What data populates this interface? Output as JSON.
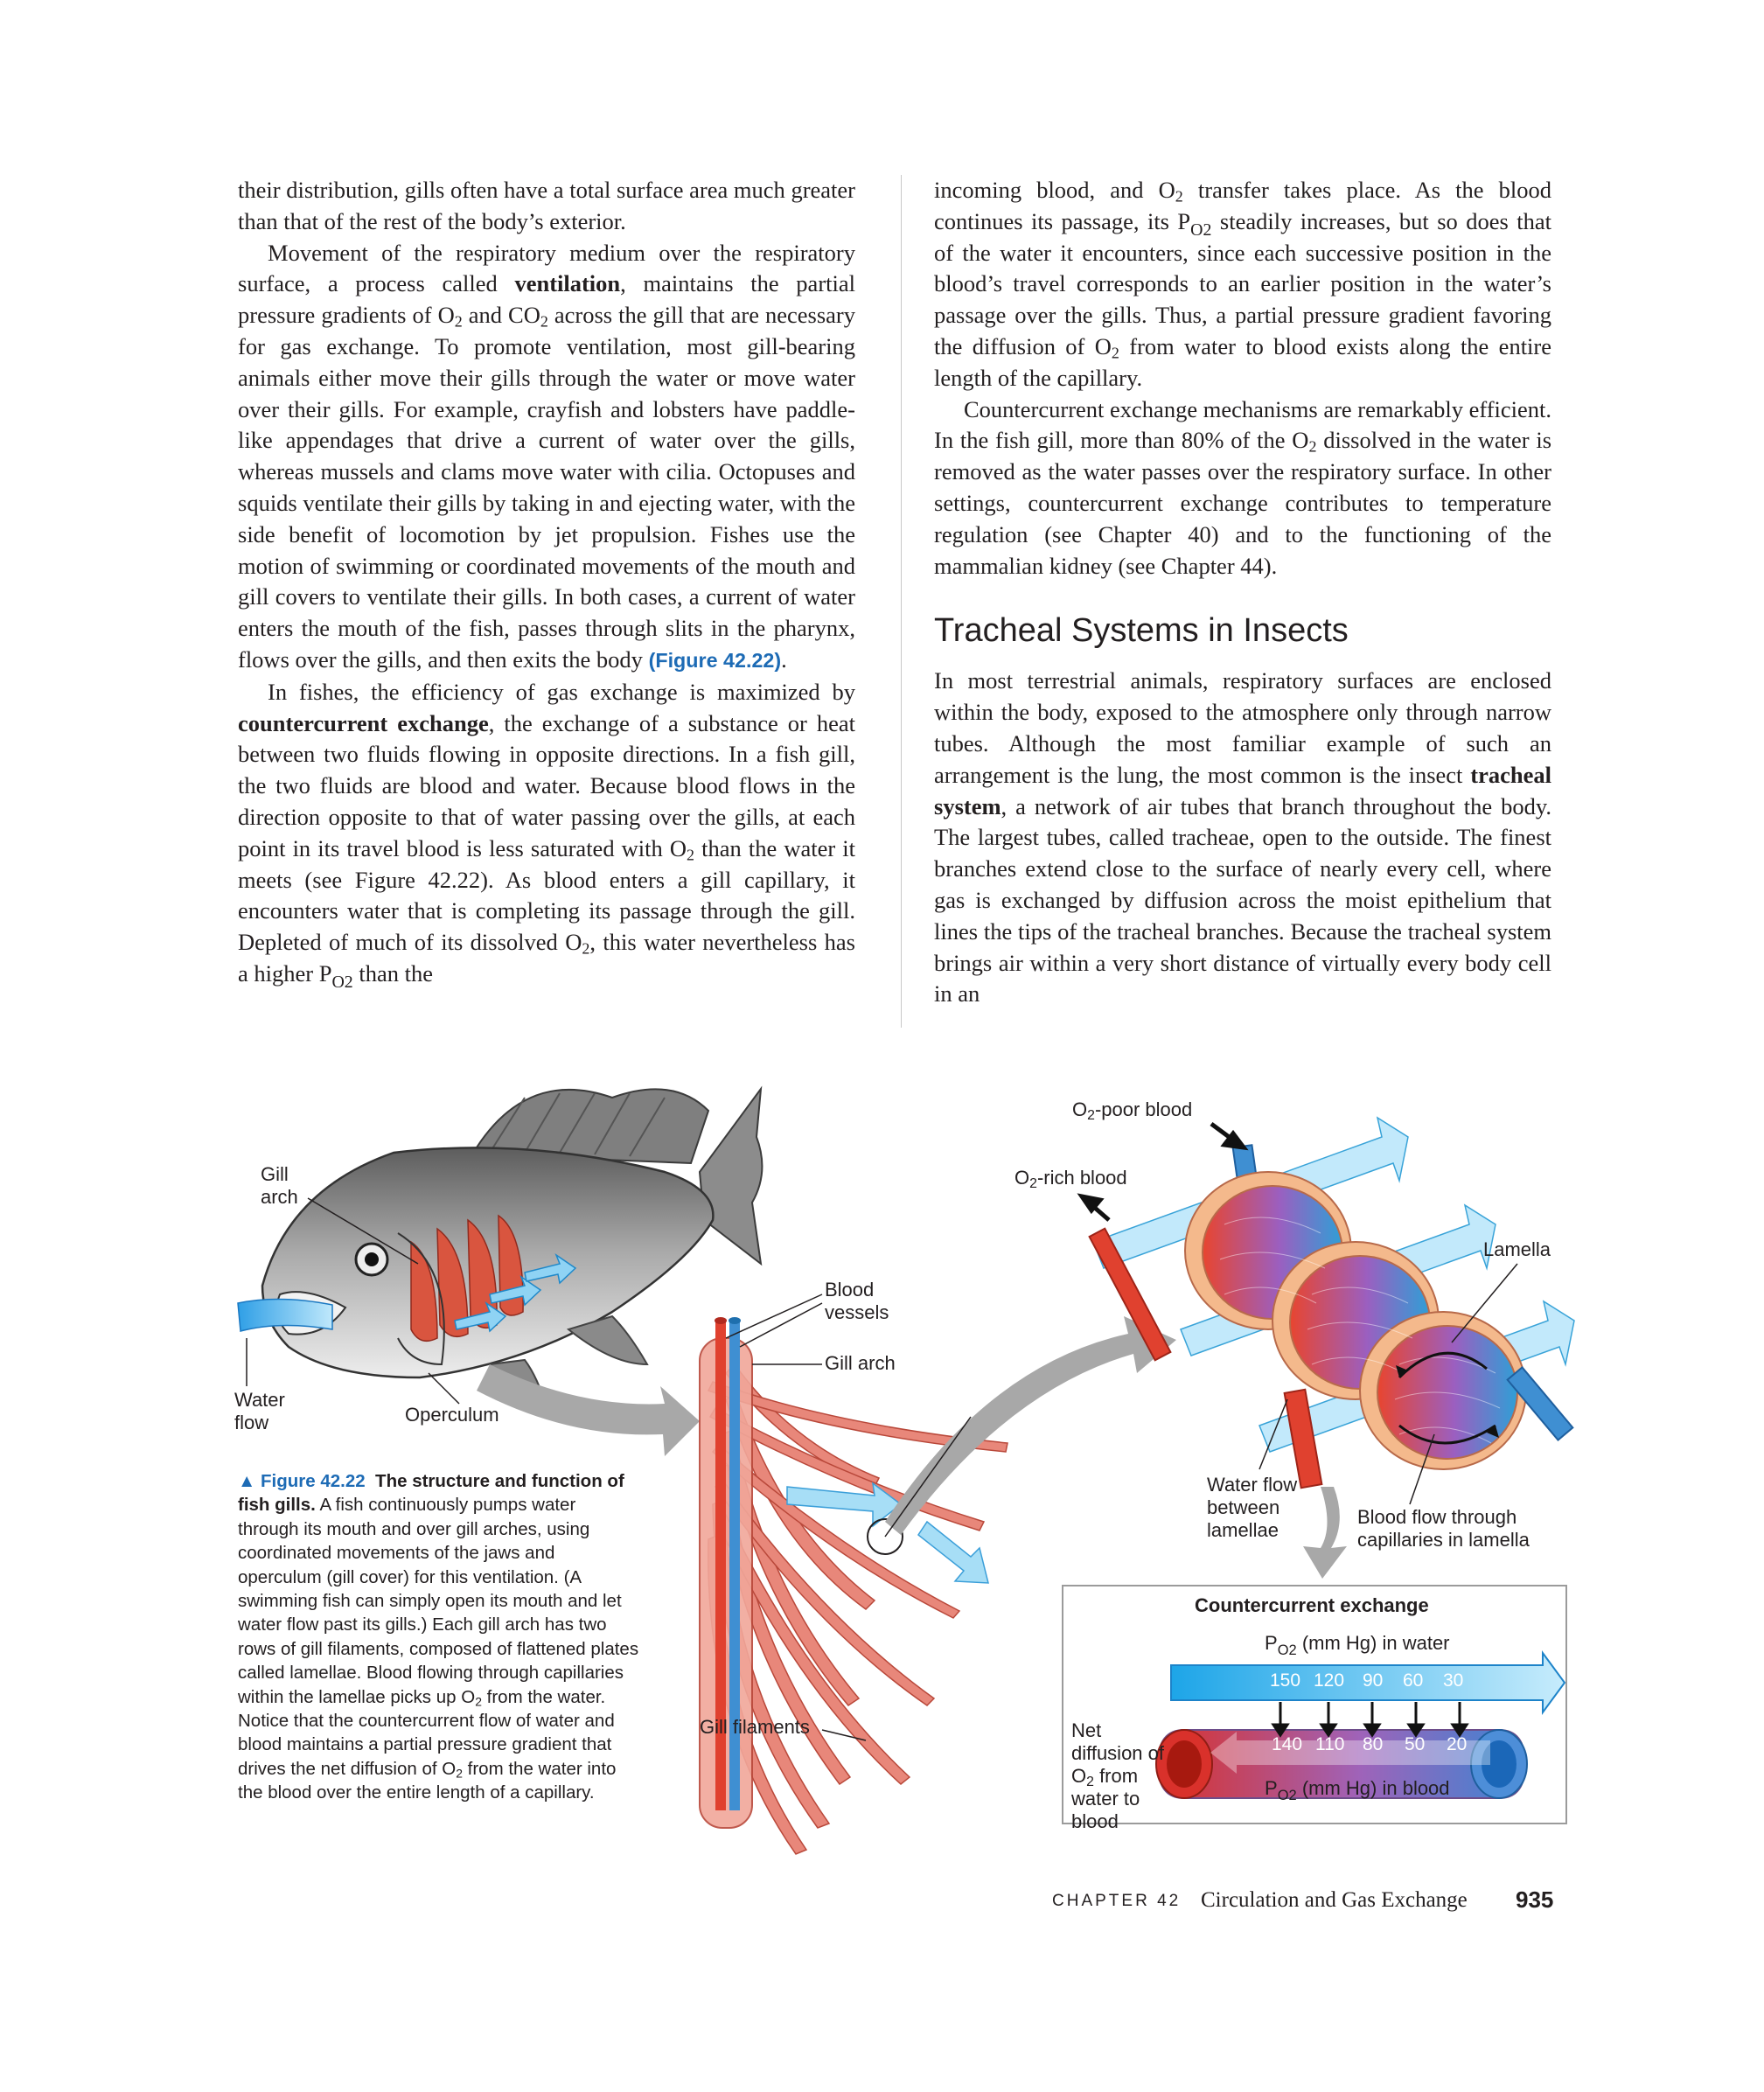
{
  "left_column": {
    "p1": [
      "their distribution, gills often have a total surface area much greater than that of the rest of the body’s exterior."
    ],
    "p2": {
      "a": "Movement of the respiratory medium over the respiratory surface, a process called ",
      "term": "ventilation",
      "b": ", maintains the partial pressure gradients of O",
      "c": " and CO",
      "d": " across the gill that are necessary for gas exchange. To promote ventilation, most gill-bearing animals either move their gills through the water or move water over their gills. For example, crayfish and lobsters have paddle-like appendages that drive a current of water over the gills, whereas mussels and clams move water with cilia. Octopuses and squids ventilate their gills by taking in and ejecting water, with the side benefit of locomotion by jet propulsion. Fishes use the motion of swimming or coordinated movements of the mouth and gill covers to ventilate their gills. In both cases, a current of water enters the mouth of the fish, passes through slits in the pharynx, flows over the gills, and then exits the body ",
      "figref": "(Figure 42.22)",
      "e": "."
    },
    "p3": {
      "a": "In fishes, the efficiency of gas exchange is maximized by ",
      "term": "countercurrent exchange",
      "b": ", the exchange of a substance or heat between two fluids flowing in opposite directions. In a fish gill, the two fluids are blood and water. Because blood flows in the direction opposite to that of water passing over the gills, at each point in its travel blood is less saturated with O",
      "c": " than the water it meets (see Figure 42.22). As blood enters a gill capillary, it encounters water that is completing its passage through the gill. Depleted of much of its dissolved O",
      "d": ", this water nevertheless has a higher P",
      "e": " than the"
    }
  },
  "right_column": {
    "p1": {
      "a": "incoming blood, and O",
      "b": " transfer takes place. As the blood continues its passage, its P",
      "c": " steadily increases, but so does that of the water it encounters, since each successive position in the blood’s travel corresponds to an earlier position in the water’s passage over the gills. Thus, a partial pressure gradient favoring the diffusion of O",
      "d": " from water to blood exists along the entire length of the capillary."
    },
    "p2": {
      "a": "Countercurrent exchange mechanisms are remarkably efficient. In the fish gill, more than 80% of the O",
      "b": " dissolved in the water is removed as the water passes over the respiratory surface. In other settings, countercurrent exchange contributes to temperature regulation (see Chapter 40) and to the functioning of the mammalian kidney (see Chapter 44)."
    },
    "heading": "Tracheal Systems in Insects",
    "p3": {
      "a": "In most terrestrial animals, respiratory surfaces are enclosed within the body, exposed to the atmosphere only through narrow tubes. Although the most familiar example of such an arrangement is the lung, the most common is the insect ",
      "term": "tracheal system",
      "b": ", a network of air tubes that branch throughout the body. The largest tubes, called tracheae, open to the outside. The finest branches extend close to the surface of nearly every cell, where gas is exchanged by diffusion across the moist epithelium that lines the tips of the tracheal branches. Because the tracheal system brings air within a very short distance of virtually every body cell in an"
    }
  },
  "sub_text": {
    "two": "2",
    "o2": "O2"
  },
  "figure": {
    "labels": {
      "gill_arch": "Gill arch",
      "water_flow": "Water flow",
      "operculum": "Operculum",
      "blood_vessels": "Blood vessels",
      "gill_arch_2": "Gill arch",
      "gill_filaments": "Gill filaments",
      "o2_poor_blood": "-poor blood",
      "o2_rich_blood": "-rich blood",
      "o2_prefix": "O",
      "lamella": "Lamella",
      "water_flow_between": "Water flow between lamellae",
      "blood_flow_through": "Blood flow through capillaries in lamella",
      "net_diffusion_a": "Net diffusion of O",
      "net_diffusion_b": "from water to blood"
    },
    "countercurrent": {
      "title": "Countercurrent exchange",
      "water_label": " (mm Hg) in water",
      "blood_label": " (mm Hg) in blood",
      "p_prefix": "P",
      "water_values": [
        "150",
        "120",
        "90",
        "60",
        "30"
      ],
      "blood_values": [
        "140",
        "110",
        "80",
        "50",
        "20"
      ]
    },
    "caption": {
      "marker": "▲",
      "label": "Figure 42.22",
      "title": "The structure and function of fish gills.",
      "text_a": "A fish continuously pumps water through its mouth and over gill arches, using coordinated movements of the jaws and operculum (gill cover) for this ventilation. (A swimming fish can simply open its mouth and let water flow past its gills.) Each gill arch has two rows of gill filaments, composed of flattened plates called lamellae. Blood flowing through capillaries within the lamellae picks up O",
      "text_b": " from the water. Notice that the countercurrent flow of water and blood maintains a partial pressure gradient that drives the net diffusion of O",
      "text_c": " from the water into the blood over the entire length of a capillary."
    }
  },
  "footer": {
    "chapter": "CHAPTER 42",
    "title": "Circulation and Gas Exchange",
    "page": "935"
  },
  "colors": {
    "accent_blue": "#1d6bb5",
    "water_blue": "#6fc6ef",
    "blood_red": "#e0412f",
    "blood_blue": "#3f8fd2",
    "tissue": "#e8877a"
  }
}
